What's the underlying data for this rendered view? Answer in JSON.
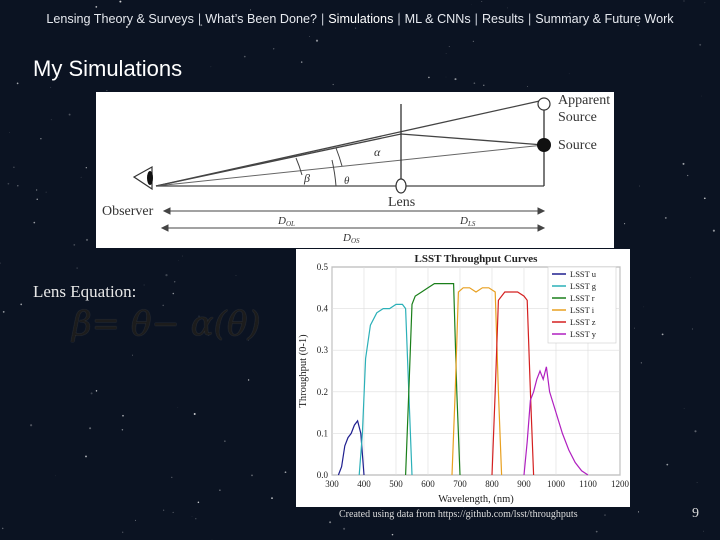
{
  "nav": {
    "items": [
      {
        "label": "Lensing Theory & Surveys",
        "active": false
      },
      {
        "label": "What’s Been Done?",
        "active": false
      },
      {
        "label": "Simulations",
        "active": true
      },
      {
        "label": "ML & CNNs",
        "active": false
      },
      {
        "label": "Results",
        "active": false
      },
      {
        "label": "Summary & Future Work",
        "active": false
      }
    ],
    "separator": "|"
  },
  "page_title": "My Simulations",
  "diagram": {
    "labels": {
      "apparent_source": "Apparent",
      "apparent_source_2": "Source",
      "source": "Source",
      "lens": "Lens",
      "observer": "Observer",
      "alpha": "α",
      "beta": "β",
      "theta": "θ",
      "d_ol": "D",
      "d_ol_sub": "OL",
      "d_ls": "D",
      "d_ls_sub": "LS",
      "d_os": "D",
      "d_os_sub": "OS"
    }
  },
  "lens_equation": {
    "label": "Lens Equation:",
    "formula": "β= θ− α(θ)"
  },
  "chart_data": {
    "type": "line",
    "title": "LSST Throughput Curves",
    "xlabel": "Wavelength, (nm)",
    "ylabel": "Throughput (0-1)",
    "xlim": [
      300,
      1200
    ],
    "ylim": [
      0,
      0.5
    ],
    "xticks": [
      300,
      400,
      500,
      600,
      700,
      800,
      900,
      1000,
      1100,
      1200
    ],
    "yticks": [
      0.0,
      0.1,
      0.2,
      0.3,
      0.4,
      0.5
    ],
    "grid": true,
    "legend": "top-right",
    "series": [
      {
        "name": "LSST u",
        "color": "#1f1f8f",
        "x": [
          320,
          330,
          340,
          350,
          360,
          370,
          380,
          390,
          400
        ],
        "y": [
          0.0,
          0.02,
          0.07,
          0.09,
          0.1,
          0.12,
          0.13,
          0.1,
          0.0
        ]
      },
      {
        "name": "LSST g",
        "color": "#2bb0b8",
        "x": [
          385,
          395,
          405,
          420,
          440,
          460,
          480,
          500,
          520,
          530,
          540,
          550
        ],
        "y": [
          0.0,
          0.1,
          0.28,
          0.36,
          0.39,
          0.4,
          0.4,
          0.41,
          0.41,
          0.4,
          0.2,
          0.0
        ]
      },
      {
        "name": "LSST r",
        "color": "#1a7f1a",
        "x": [
          530,
          540,
          550,
          560,
          580,
          600,
          620,
          640,
          660,
          680,
          690,
          700
        ],
        "y": [
          0.0,
          0.2,
          0.41,
          0.43,
          0.44,
          0.45,
          0.46,
          0.46,
          0.46,
          0.46,
          0.2,
          0.0
        ]
      },
      {
        "name": "LSST i",
        "color": "#e8a020",
        "x": [
          675,
          685,
          695,
          710,
          730,
          750,
          770,
          790,
          810,
          820,
          830
        ],
        "y": [
          0.0,
          0.2,
          0.44,
          0.45,
          0.45,
          0.44,
          0.45,
          0.45,
          0.44,
          0.2,
          0.0
        ]
      },
      {
        "name": "LSST z",
        "color": "#d42020",
        "x": [
          800,
          810,
          820,
          840,
          860,
          880,
          900,
          910,
          920,
          930
        ],
        "y": [
          0.0,
          0.2,
          0.42,
          0.44,
          0.44,
          0.44,
          0.43,
          0.42,
          0.2,
          0.0
        ]
      },
      {
        "name": "LSST y",
        "color": "#b020c0",
        "x": [
          900,
          910,
          920,
          930,
          940,
          950,
          960,
          970,
          980,
          1000,
          1020,
          1040,
          1060,
          1080,
          1100
        ],
        "y": [
          0.0,
          0.08,
          0.18,
          0.2,
          0.23,
          0.25,
          0.23,
          0.26,
          0.2,
          0.15,
          0.1,
          0.06,
          0.03,
          0.01,
          0.0
        ]
      }
    ]
  },
  "credit": "Created using data from https://github.com/lsst/throughputs",
  "page_number": "9"
}
